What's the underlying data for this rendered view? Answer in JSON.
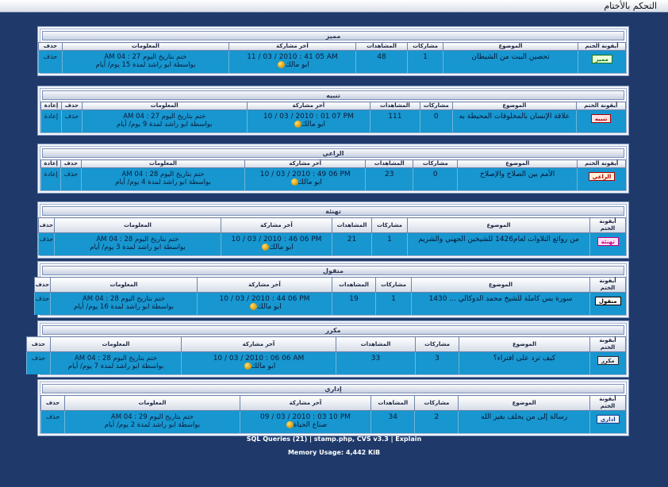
{
  "window": {
    "title": "التحكم بالأختام"
  },
  "columns": {
    "icon": "أيقونة الختم",
    "subject": "الموضوع",
    "posts": "مشاركات",
    "views": "المشاهدات",
    "last_post": "آخر مشاركة",
    "info": "المعلومات",
    "delete": "حذف",
    "restore": "إعادة"
  },
  "sections": [
    {
      "title": "مميز",
      "badge": "مميز",
      "badge_color": "#1d7a1d",
      "badge_bg": "#e9ffd9",
      "subject": "تحصين البيت من الشيطان",
      "posts": "1",
      "views": "48",
      "last_date": "11 / 03 / 2010 : 41 05 AM",
      "last_user": "ابو مالك",
      "info_line1": "ختم بتاريخ اليوم 27 : 04 AM",
      "info_line2": "بواسطة ابو راشد لمدة 15 يوم/ أيام",
      "delete": "حذف"
    },
    {
      "title": "تنبيه",
      "badge": "تنبيه",
      "badge_color": "#b40000",
      "badge_bg": "#ffe3e3",
      "subject": "علاقة الإنسان بالمخلوقات المحيطة به",
      "posts": "0",
      "views": "111",
      "last_date": "10 / 03 / 2010 : 01 07 PM",
      "last_user": "ابو مالك",
      "info_line1": "ختم بتاريخ اليوم 27 : 04 AM",
      "info_line2": "بواسطة ابو راشد لمدة 9 يوم/ أيام",
      "delete": "حذف",
      "restore": "إعادة"
    },
    {
      "title": "الراعي",
      "badge": "الراعي",
      "badge_color": "#b40000",
      "badge_bg": "#fff3d9",
      "subject": "الأمم بين الصلاح والإصلاح",
      "posts": "0",
      "views": "23",
      "last_date": "10 / 03 / 2010 : 49 06 PM",
      "last_user": "ابو مالك",
      "info_line1": "ختم بتاريخ اليوم 28 : 04 AM",
      "info_line2": "بواسطة ابو راشد لمدة 4 يوم/ أيام",
      "delete": "حذف",
      "restore": "إعادة"
    },
    {
      "title": "تهنئة",
      "badge": "تهنئة",
      "badge_color": "#c4008c",
      "badge_bg": "#ffe3f6",
      "subject": "من روائع التلاوات لعام1426 للشيخين الجهني والشريم",
      "posts": "1",
      "views": "21",
      "last_date": "10 / 03 / 2010 : 46 06 PM",
      "last_user": "ابو مالك",
      "info_line1": "ختم بتاريخ اليوم 28 : 04 AM",
      "info_line2": "بواسطة ابو راشد لمدة 3 يوم/ أيام",
      "delete": "حذف"
    },
    {
      "title": "منقول",
      "badge": "منقول",
      "badge_color": "#000000",
      "badge_bg": "#ffffff",
      "subject": "سورة يس كاملة للشيخ محمد الدوكالي ... 1430",
      "posts": "1",
      "views": "19",
      "last_date": "10 / 03 / 2010 : 44 06 PM",
      "last_user": "ابو مالك",
      "info_line1": "ختم بتاريخ اليوم 28 : 04 AM",
      "info_line2": "بواسطة ابو راشد لمدة 16 يوم/ أيام",
      "delete": "حذف"
    },
    {
      "title": "مكرر",
      "badge": "مكرر",
      "badge_color": "#2a2a2a",
      "badge_bg": "#e8eef7",
      "subject": "كيف ترد على افتراء؟",
      "posts": "3",
      "views": "33",
      "last_date": "10 / 03 / 2010 : 06 06 AM",
      "last_user": "ابو مالك",
      "info_line1": "ختم بتاريخ اليوم 28 : 04 AM",
      "info_line2": "بواسطة ابو راشد لمدة 7 يوم/ أيام",
      "delete": "حذف"
    },
    {
      "title": "إداري",
      "badge": "اداري",
      "badge_color": "#1a3c8a",
      "badge_bg": "#eef3ff",
      "subject": "رسالة إلى من يحلف بغير الله",
      "posts": "2",
      "views": "34",
      "last_date": "09 / 03 / 2010 : 03 10 PM",
      "last_user": "صناع الحياة",
      "info_line1": "ختم بتاريخ اليوم 29 : 04 AM",
      "info_line2": "بواسطة ابو راشد لمدة 2 يوم/ أيام",
      "delete": "حذف"
    }
  ],
  "footer": {
    "line1": "SQL Queries (21) | stamp.php, CVS v3.3 | Explain",
    "line2": "Memory Usage: 4,442 KiB"
  }
}
